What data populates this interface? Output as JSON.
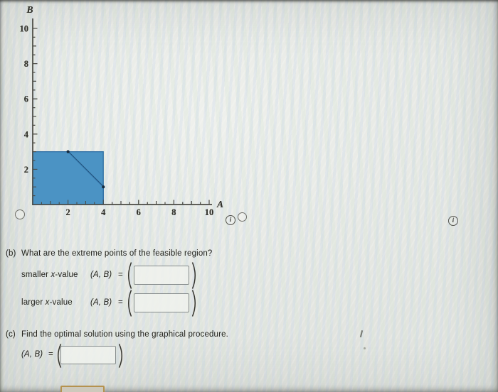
{
  "colors": {
    "region_fill": "#4b93c4",
    "region_edge": "#2d6da3",
    "cut_line": "#1b3a58",
    "axis": "#4b4b45",
    "tick_label": "#33332c",
    "dot": "#152a3d"
  },
  "icons": {
    "info_glyph": "i"
  },
  "chart_data": [
    {
      "type": "feasible-region",
      "option": 1,
      "xlabel": "A",
      "ylabel": "B",
      "xlim": [
        0,
        10.2
      ],
      "ylim": [
        0,
        10.5
      ],
      "x_ticks": [
        2,
        4,
        6,
        8,
        10
      ],
      "y_ticks": [
        2,
        4,
        6,
        8,
        10
      ],
      "minor_tick_step": 0.5,
      "region_vertices": [
        [
          0,
          0
        ],
        [
          4,
          0
        ],
        [
          4,
          3
        ],
        [
          0,
          3
        ]
      ],
      "overlay_segments": [
        [
          [
            2,
            3
          ],
          [
            4,
            1
          ]
        ]
      ],
      "vertex_dots": [
        [
          2,
          3
        ],
        [
          4,
          1
        ]
      ]
    },
    {
      "type": "feasible-region",
      "option": 2,
      "xlabel": "A",
      "ylabel": "B",
      "xlim": [
        0,
        10.2
      ],
      "ylim": [
        0,
        10.5
      ],
      "x_ticks": [
        2,
        4,
        6,
        8,
        10
      ],
      "y_ticks": [
        2,
        4,
        6,
        8,
        10
      ],
      "minor_tick_step": 0.5,
      "region_vertices": [
        [
          0,
          0
        ],
        [
          4,
          0
        ],
        [
          4,
          1
        ],
        [
          2,
          3
        ],
        [
          0,
          3
        ]
      ],
      "overlay_segments": [],
      "vertex_dots": [
        [
          2,
          3
        ],
        [
          4,
          1
        ]
      ]
    }
  ],
  "partB": {
    "label": "(b)",
    "question": "What are the extreme points of the feasible region?",
    "rows": [
      {
        "qualifier_pre": "smaller ",
        "variable": "x",
        "qualifier_post": "-value",
        "lhs": "(A, B)",
        "eq": "=",
        "input_value": ""
      },
      {
        "qualifier_pre": "larger ",
        "variable": "x",
        "qualifier_post": "-value",
        "lhs": "(A, B)",
        "eq": "=",
        "input_value": ""
      }
    ]
  },
  "partC": {
    "label": "(c)",
    "question": "Find the optimal solution using the graphical procedure.",
    "lhs": "(A, B)",
    "eq": "=",
    "input_value": ""
  }
}
